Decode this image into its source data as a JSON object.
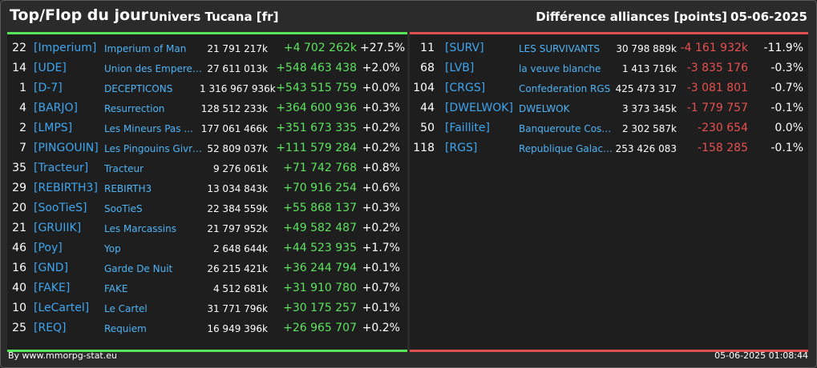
{
  "header": {
    "title": "Top/Flop du jour",
    "universe": "Univers Tucana [fr]",
    "category": "Différence alliances [points]",
    "date": "05-06-2025"
  },
  "colors": {
    "top_accent": "#57e35a",
    "flop_accent": "#e05050",
    "tag": "#3ea6f0"
  },
  "top": [
    {
      "rank": "22",
      "tag": "[Imperium]",
      "name": "Imperium of Man",
      "points": "21 791 217k",
      "diff": "+4 702 262k",
      "pct": "+27.5%"
    },
    {
      "rank": "14",
      "tag": "[UDE]",
      "name": "Union des Empereur...",
      "points": "27 611 013k",
      "diff": "+548 463 438",
      "pct": "+2.0%"
    },
    {
      "rank": "1",
      "tag": "[D-7]",
      "name": "DECEPTICONS",
      "points": "1 316 967 936k",
      "diff": "+543 515 759",
      "pct": "+0.0%"
    },
    {
      "rank": "4",
      "tag": "[BARJO]",
      "name": "Resurrection",
      "points": "128 512 233k",
      "diff": "+364 600 936",
      "pct": "+0.3%"
    },
    {
      "rank": "2",
      "tag": "[LMPS]",
      "name": "Les Mineurs Pas ...",
      "points": "177 061 466k",
      "diff": "+351 673 335",
      "pct": "+0.2%"
    },
    {
      "rank": "7",
      "tag": "[PINGOUIN]",
      "name": "Les Pingouins Givre...",
      "points": "52 809 037k",
      "diff": "+111 579 284",
      "pct": "+0.2%"
    },
    {
      "rank": "35",
      "tag": "[Tracteur]",
      "name": "Tracteur",
      "points": "9 276 061k",
      "diff": "+71 742 768",
      "pct": "+0.8%"
    },
    {
      "rank": "29",
      "tag": "[REBIRTH3]",
      "name": "REBIRTH3",
      "points": "13 034 843k",
      "diff": "+70 916 254",
      "pct": "+0.6%"
    },
    {
      "rank": "20",
      "tag": "[SooTieS]",
      "name": "SooTieS",
      "points": "22 384 559k",
      "diff": "+55 868 137",
      "pct": "+0.3%"
    },
    {
      "rank": "21",
      "tag": "[GRUIIK]",
      "name": "Les Marcassins",
      "points": "21 797 952k",
      "diff": "+49 582 487",
      "pct": "+0.2%"
    },
    {
      "rank": "46",
      "tag": "[Poy]",
      "name": "Yop",
      "points": "2 648 644k",
      "diff": "+44 523 935",
      "pct": "+1.7%"
    },
    {
      "rank": "16",
      "tag": "[GND]",
      "name": "Garde De Nuit",
      "points": "26 215 421k",
      "diff": "+36 244 794",
      "pct": "+0.1%"
    },
    {
      "rank": "40",
      "tag": "[FAKE]",
      "name": "FAKE",
      "points": "4 512 681k",
      "diff": "+31 910 780",
      "pct": "+0.7%"
    },
    {
      "rank": "10",
      "tag": "[LeCartel]",
      "name": "Le Cartel",
      "points": "31 771 796k",
      "diff": "+30 175 257",
      "pct": "+0.1%"
    },
    {
      "rank": "25",
      "tag": "[REQ]",
      "name": "Requiem",
      "points": "16 949 396k",
      "diff": "+26 965 707",
      "pct": "+0.2%"
    }
  ],
  "flop": [
    {
      "rank": "11",
      "tag": "[SURV]",
      "name": "LES SURVIVANTS",
      "points": "30 798 889k",
      "diff": "-4 161 932k",
      "pct": "-11.9%"
    },
    {
      "rank": "68",
      "tag": "[LVB]",
      "name": "la veuve blanche",
      "points": "1 413 716k",
      "diff": "-3 835 176",
      "pct": "-0.3%"
    },
    {
      "rank": "104",
      "tag": "[CRGS]",
      "name": "Confederation RGS",
      "points": "425 473 317",
      "diff": "-3 081 801",
      "pct": "-0.7%"
    },
    {
      "rank": "44",
      "tag": "[DWELWOK]",
      "name": "DWELWOK",
      "points": "3 373 345k",
      "diff": "-1 779 757",
      "pct": "-0.1%"
    },
    {
      "rank": "50",
      "tag": "[Faillite]",
      "name": "Banqueroute Cosm...",
      "points": "2 302 587k",
      "diff": "-230 654",
      "pct": "0.0%"
    },
    {
      "rank": "118",
      "tag": "[RGS]",
      "name": "Republique Galacti...",
      "points": "253 426 083",
      "diff": "-158 285",
      "pct": "-0.1%"
    }
  ],
  "footer": {
    "credit": "By www.mmorpg-stat.eu",
    "timestamp": "05-06-2025 01:08:44"
  }
}
